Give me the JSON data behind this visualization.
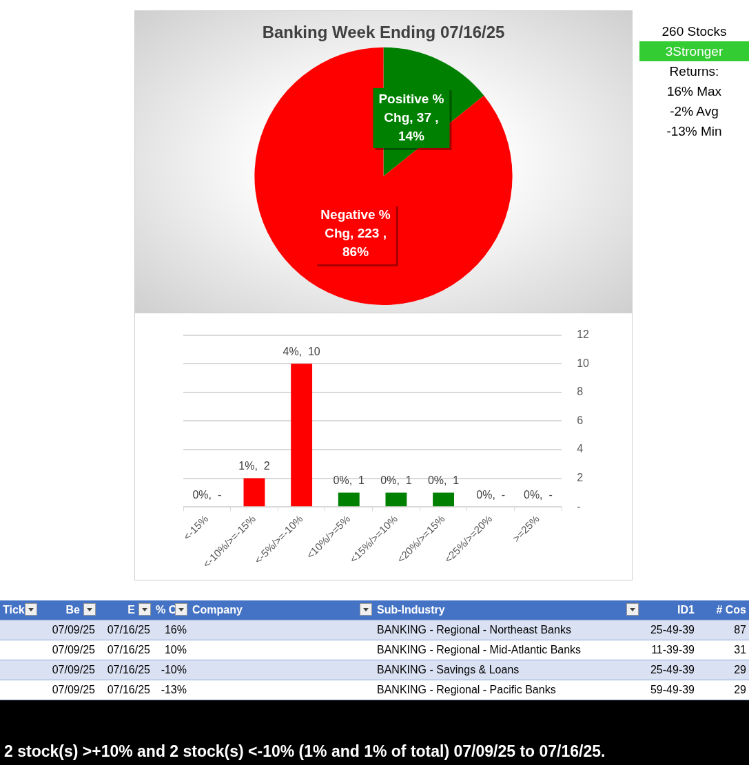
{
  "chart_data": [
    {
      "type": "pie",
      "title": "Banking Week Ending 07/16/25",
      "categories": [
        "Positive % Chg",
        "Negative % Chg"
      ],
      "values": [
        37,
        223
      ],
      "colors": [
        "#008000",
        "#ff0000"
      ],
      "value_labels": [
        "37 , 14%",
        "223 , 86%"
      ],
      "legend": false
    },
    {
      "type": "bar",
      "categories": [
        "<-15%",
        "<-10%/>=-15%",
        "<-5%/>=-10%",
        "<10%/>=5%",
        "<15%/>=10%",
        "<20%/>=15%",
        "<25%/>=20%",
        ">=25%"
      ],
      "values": [
        0,
        2,
        10,
        1,
        1,
        1,
        0,
        0
      ],
      "colors": [
        "#ff0000",
        "#ff0000",
        "#ff0000",
        "#008000",
        "#008000",
        "#008000",
        "#008000",
        "#008000"
      ],
      "value_labels": [
        "0%,  -",
        "1%,  2",
        "4%,  10",
        "0%,  1",
        "0%,  1",
        "0%,  1",
        "0%,  -",
        "0%,  -"
      ],
      "ylim": [
        0,
        12
      ],
      "yticks": [
        {
          "value": 0,
          "label": "-"
        },
        2,
        4,
        6,
        8,
        10,
        12
      ],
      "grid": "y",
      "legend": false
    },
    {
      "type": "other",
      "annotations": [
        "260 Stocks",
        "3Stronger",
        "Returns:",
        "16% Max",
        "-2% Avg",
        "-13% Min"
      ],
      "colors": [
        null,
        "#33cc33",
        null,
        null,
        null,
        null
      ]
    },
    {
      "type": "other",
      "categories": [
        "Tick",
        "Be",
        "E",
        "% C",
        "Company",
        "Sub-Industry",
        "ID1",
        "# Cos"
      ],
      "cell_labels": [
        [
          null,
          "07/09/25",
          "07/16/25",
          "16%",
          null,
          "BANKING - Regional - Northeast Banks",
          "25-49-39",
          "87"
        ],
        [
          null,
          "07/09/25",
          "07/16/25",
          "10%",
          null,
          "BANKING - Regional - Mid-Atlantic Banks",
          "11-39-39",
          "31"
        ],
        [
          null,
          "07/09/25",
          "07/16/25",
          "-10%",
          null,
          "BANKING - Savings & Loans",
          "25-49-39",
          "29"
        ],
        [
          null,
          "07/09/25",
          "07/16/25",
          "-13%",
          null,
          "BANKING - Regional - Pacific Banks",
          "59-49-39",
          "29"
        ]
      ],
      "annotations": [
        "2 stock(s) >+10% and 2 stock(s) <-10% (1% and 1% of total) 07/09/25 to 07/16/25."
      ]
    }
  ]
}
